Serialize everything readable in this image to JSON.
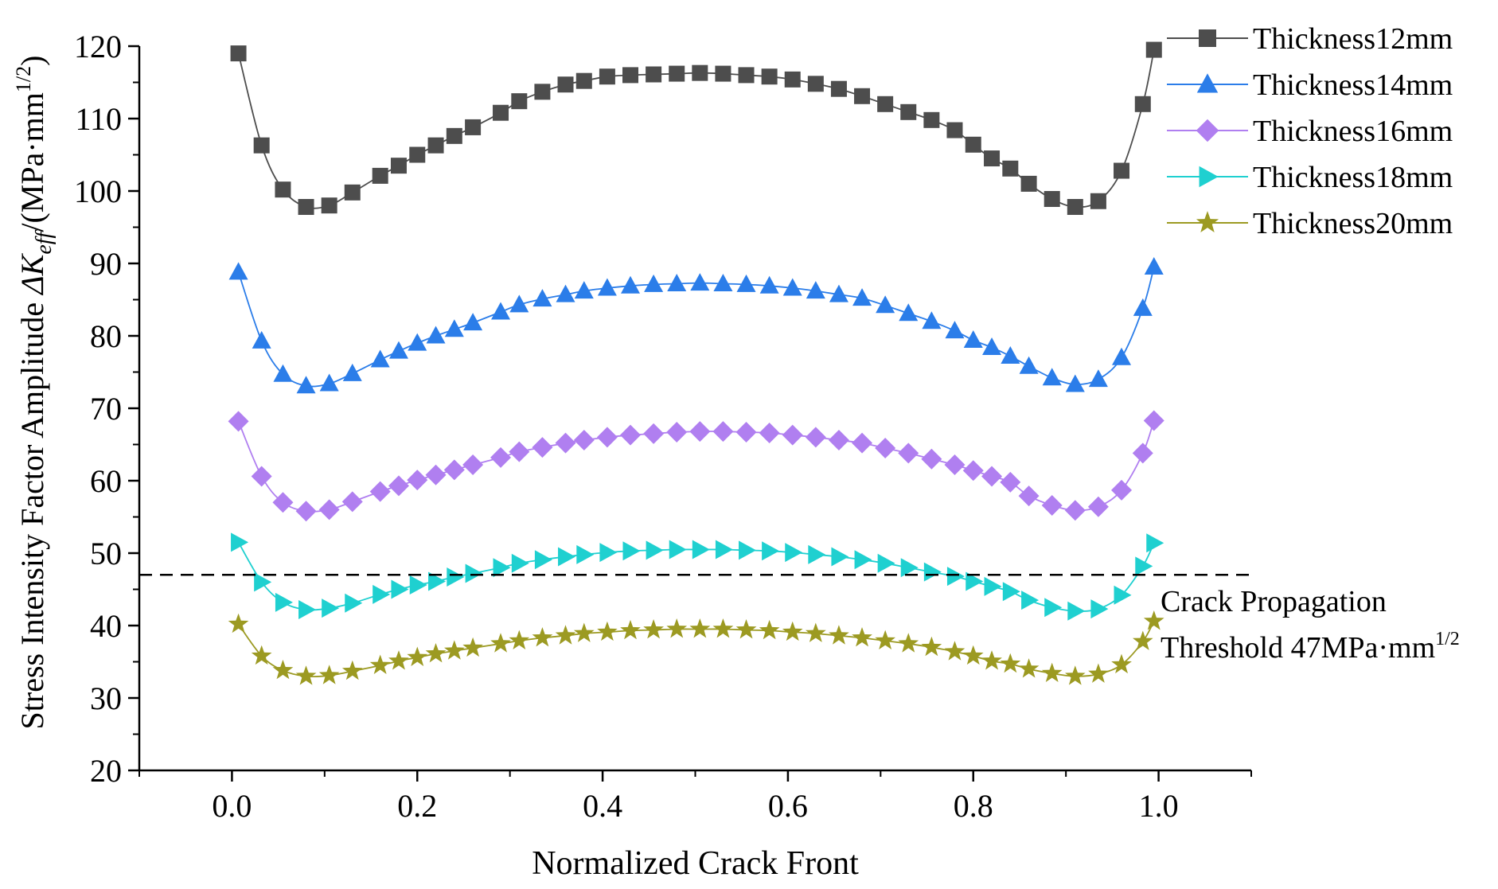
{
  "chart_data": {
    "type": "line",
    "xlabel": "Normalized Crack Front",
    "ylabel": {
      "prefix": "Stress Intensity Factor Amplitude",
      "delta_k": "ΔK",
      "subscript": "eff",
      "unit_open": "/(MPa·mm",
      "unit_exponent": "1/2",
      "unit_close": ")"
    },
    "xlim": [
      -0.1,
      1.1
    ],
    "ylim": [
      20,
      120
    ],
    "x_ticks": [
      "0.0",
      "0.2",
      "0.4",
      "0.6",
      "0.8",
      "1.0"
    ],
    "y_ticks": [
      "20",
      "30",
      "40",
      "50",
      "60",
      "70",
      "80",
      "90",
      "100",
      "110",
      "120"
    ],
    "legend_position": "top-right",
    "x": [
      0.007,
      0.032,
      0.055,
      0.08,
      0.105,
      0.13,
      0.16,
      0.18,
      0.2,
      0.22,
      0.24,
      0.26,
      0.29,
      0.31,
      0.335,
      0.36,
      0.38,
      0.405,
      0.43,
      0.455,
      0.48,
      0.505,
      0.53,
      0.555,
      0.58,
      0.605,
      0.63,
      0.655,
      0.68,
      0.705,
      0.73,
      0.755,
      0.78,
      0.8,
      0.82,
      0.84,
      0.86,
      0.885,
      0.91,
      0.935,
      0.96,
      0.983,
      0.995
    ],
    "series": [
      {
        "name": "Thickness12mm",
        "marker": "square",
        "color": "#4d4d4d",
        "values": [
          119.0,
          106.3,
          100.2,
          97.8,
          98.0,
          99.8,
          102.1,
          103.5,
          105.0,
          106.3,
          107.6,
          108.8,
          110.8,
          112.4,
          113.7,
          114.7,
          115.2,
          115.8,
          116.0,
          116.1,
          116.2,
          116.3,
          116.2,
          116.0,
          115.8,
          115.4,
          114.8,
          114.1,
          113.1,
          112.0,
          110.9,
          109.8,
          108.4,
          106.4,
          104.5,
          103.1,
          101.0,
          98.9,
          97.8,
          98.6,
          102.8,
          112.0,
          119.5
        ]
      },
      {
        "name": "Thickness14mm",
        "marker": "triangle-up",
        "color": "#2b7de9",
        "values": [
          88.8,
          79.3,
          74.7,
          73.1,
          73.4,
          74.8,
          76.7,
          77.9,
          79.0,
          80.0,
          80.9,
          81.8,
          83.3,
          84.3,
          85.1,
          85.7,
          86.2,
          86.6,
          86.9,
          87.1,
          87.2,
          87.3,
          87.2,
          87.1,
          86.9,
          86.6,
          86.2,
          85.7,
          85.2,
          84.2,
          83.1,
          82.0,
          80.7,
          79.4,
          78.4,
          77.2,
          75.8,
          74.2,
          73.3,
          74.0,
          77.0,
          83.8,
          89.5
        ]
      },
      {
        "name": "Thickness16mm",
        "marker": "diamond",
        "color": "#b07ff0",
        "values": [
          68.2,
          60.6,
          57.0,
          55.8,
          56.0,
          57.1,
          58.5,
          59.3,
          60.1,
          60.8,
          61.5,
          62.2,
          63.2,
          64.0,
          64.6,
          65.2,
          65.6,
          66.0,
          66.3,
          66.5,
          66.7,
          66.8,
          66.8,
          66.7,
          66.6,
          66.3,
          66.0,
          65.6,
          65.2,
          64.5,
          63.8,
          63.0,
          62.2,
          61.4,
          60.6,
          59.8,
          57.9,
          56.6,
          55.9,
          56.4,
          58.7,
          63.8,
          68.3
        ]
      },
      {
        "name": "Thickness18mm",
        "marker": "triangle-right",
        "color": "#1fd0d0",
        "values": [
          51.5,
          46.0,
          43.2,
          42.2,
          42.4,
          43.1,
          44.3,
          45.0,
          45.6,
          46.1,
          46.7,
          47.2,
          48.0,
          48.6,
          49.1,
          49.5,
          49.8,
          50.1,
          50.3,
          50.4,
          50.5,
          50.5,
          50.5,
          50.4,
          50.3,
          50.1,
          49.8,
          49.5,
          49.1,
          48.6,
          48.0,
          47.4,
          46.8,
          46.1,
          45.4,
          44.7,
          43.5,
          42.5,
          42.0,
          42.3,
          44.2,
          48.2,
          51.4
        ]
      },
      {
        "name": "Thickness20mm",
        "marker": "star",
        "color": "#9c9a22",
        "values": [
          40.2,
          35.8,
          33.8,
          33.0,
          33.1,
          33.7,
          34.5,
          35.1,
          35.6,
          36.1,
          36.5,
          36.9,
          37.5,
          37.9,
          38.3,
          38.6,
          38.9,
          39.1,
          39.3,
          39.4,
          39.5,
          39.5,
          39.5,
          39.4,
          39.3,
          39.1,
          38.9,
          38.6,
          38.3,
          37.9,
          37.5,
          37.0,
          36.4,
          35.8,
          35.1,
          34.7,
          34.0,
          33.4,
          33.0,
          33.3,
          34.6,
          37.8,
          40.6
        ]
      }
    ],
    "threshold": {
      "value": 47,
      "style": "dashed",
      "label_line1": "Crack Propagation",
      "label_line2": "Threshold 47MPa·mm",
      "label_exponent": "1/2"
    }
  }
}
